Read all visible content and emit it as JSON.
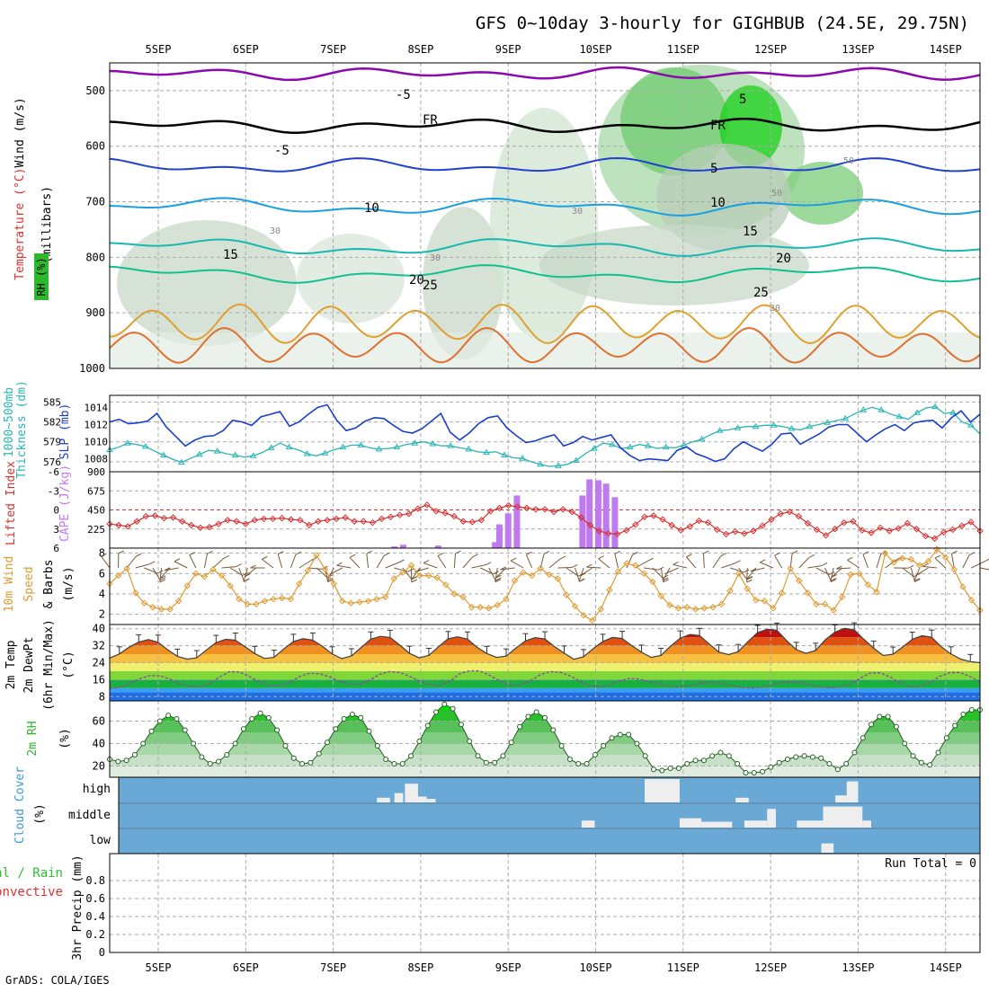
{
  "title": "GFS 0~10day 3-hourly for GIGHBUB (24.5E, 29.75N)",
  "footer": "GrADS: COLA/IGES",
  "dates": [
    "5SEP",
    "6SEP",
    "7SEP",
    "8SEP",
    "9SEP",
    "10SEP",
    "11SEP",
    "12SEP",
    "13SEP",
    "14SEP"
  ],
  "colors": {
    "rh_green": "#2db82d",
    "temp_purple": "#8a0ab0",
    "slp_blue": "#1a3fcc",
    "thick_cyan": "#2ab5b5",
    "li_red": "#d83030",
    "cape_violet": "#c07af0",
    "wind_orange": "#e09a30",
    "cloud_blue": "#6aa8d6",
    "precip_green": "#2fbf2f",
    "precip_red": "#e03030"
  },
  "chart_data": [
    {
      "type": "contour",
      "name": "pressure-cross-section",
      "ylabels": [
        "Wind (m/s)",
        "Temperature (°C)",
        "RH (%)",
        "(millibars)"
      ],
      "ytick_labels": [
        "500",
        "600",
        "700",
        "800",
        "900",
        "1000"
      ],
      "yticks": [
        500,
        600,
        700,
        800,
        900,
        1000
      ],
      "ylim": [
        1000,
        450
      ],
      "temperature_labels": [
        "-5",
        "FR",
        "-5",
        "10",
        "15",
        "20",
        "25",
        "5",
        "FR",
        "5",
        "10",
        "15",
        "20",
        "25"
      ],
      "rh_labels": [
        "30",
        "30",
        "30",
        "50",
        "50",
        "30"
      ]
    },
    {
      "type": "line",
      "name": "thickness-slp",
      "ylabels": [
        "1000~500mb",
        "Thickness (dm)",
        "SLP (mb)"
      ],
      "thickness_ticks": [
        "576",
        "579",
        "582",
        "585"
      ],
      "slp_ticks": [
        "1008",
        "1010",
        "1012",
        "1014"
      ],
      "thickness_range": [
        574.5,
        586
      ],
      "slp_range": [
        1006.5,
        1015.4
      ],
      "slp": [
        1012.3,
        1012.6,
        1012.1,
        1012.2,
        1012.4,
        1013.3,
        1011.7,
        1010.6,
        1009.5,
        1010.2,
        1010.6,
        1010.7,
        1011.3,
        1012.5,
        1012.3,
        1011.9,
        1012.9,
        1013.2,
        1013.5,
        1011.8,
        1012.3,
        1013.2,
        1014.0,
        1014.3,
        1012.5,
        1011.3,
        1011.6,
        1012.4,
        1012.8,
        1012.7,
        1011.9,
        1011.2,
        1011.0,
        1011.5,
        1012.4,
        1013.3,
        1011.1,
        1010.2,
        1011.0,
        1012.1,
        1012.8,
        1013.0,
        1011.6,
        1010.7,
        1009.9,
        1010.1,
        1010.5,
        1010.8,
        1009.5,
        1009.9,
        1010.6,
        1010.2,
        1010.5,
        1010.8,
        1009.3,
        1008.4,
        1007.8,
        1008.0,
        1007.9,
        1007.8,
        1009.0,
        1009.4,
        1008.6,
        1008.2,
        1007.7,
        1008.0,
        1009.2,
        1010.0,
        1009.4,
        1008.9,
        1009.7,
        1010.9,
        1011.0,
        1009.7,
        1010.3,
        1010.9,
        1011.7,
        1012.0,
        1012.0,
        1011.0,
        1010.0,
        1010.8,
        1011.5,
        1012.0,
        1011.3,
        1012.2,
        1012.4,
        1012.5,
        1011.6,
        1012.8,
        1013.6,
        1012.3,
        1013.2
      ],
      "thickness": [
        577.8,
        578.2,
        578.8,
        578.6,
        578.3,
        577.6,
        577.0,
        576.4,
        575.9,
        576.5,
        577.1,
        577.7,
        577.6,
        577.2,
        577.0,
        576.7,
        576.9,
        577.4,
        578.1,
        578.8,
        578.2,
        577.8,
        577.2,
        576.9,
        577.3,
        577.8,
        578.2,
        578.5,
        578.5,
        578.1,
        577.9,
        578.0,
        578.2,
        578.6,
        578.8,
        579.0,
        578.7,
        578.4,
        578.4,
        578.1,
        577.9,
        577.5,
        577.4,
        577.5,
        577.0,
        576.6,
        576.5,
        576.0,
        575.6,
        575.3,
        575.4,
        575.6,
        576.2,
        577.2,
        578.0,
        578.8,
        578.6,
        578.0,
        578.2,
        578.6,
        578.4,
        578.0,
        578.2,
        578.1,
        578.5,
        579.0,
        579.4,
        580.1,
        580.7,
        580.8,
        581.1,
        581.3,
        581.3,
        581.5,
        581.5,
        581.3,
        581.0,
        580.8,
        581.3,
        581.6,
        581.9,
        582.2,
        582.5,
        583.2,
        583.8,
        584.2,
        583.8,
        583.2,
        582.8,
        582.4,
        583.4,
        584.1,
        584.3,
        583.3,
        583.4,
        582.0,
        581.5,
        580.2
      ],
      "series": [
        {
          "name": "SLP (mb)"
        },
        {
          "name": "Thickness (dm)"
        }
      ]
    },
    {
      "type": "bar+line",
      "name": "cape-lifted-index",
      "ylabels": [
        "Lifted Index",
        "CAPE (J/kg)"
      ],
      "li_ticks": [
        "-6",
        "-3",
        "0",
        "3",
        "6"
      ],
      "cape_ticks": [
        "225",
        "450",
        "675",
        "900"
      ],
      "li_range": [
        6,
        -6
      ],
      "cape_range": [
        0,
        900
      ],
      "lifted_index": [
        2.2,
        2.4,
        2.6,
        1.8,
        1.0,
        0.9,
        1.3,
        1.2,
        1.8,
        2.4,
        2.8,
        2.7,
        2.2,
        1.6,
        1.8,
        2.2,
        1.6,
        1.4,
        1.4,
        1.3,
        1.5,
        1.6,
        2.4,
        1.8,
        1.6,
        1.4,
        1.2,
        1.8,
        1.8,
        2.0,
        1.4,
        1.1,
        0.8,
        0.6,
        -0.2,
        -0.8,
        0.2,
        0.5,
        1.0,
        1.8,
        1.9,
        1.6,
        0.2,
        -0.3,
        -0.7,
        -0.5,
        -0.3,
        -0.1,
        -0.1,
        0.3,
        -0.1,
        0.3,
        1.2,
        2.4,
        3.3,
        3.7,
        3.8,
        3.2,
        2.3,
        1.1,
        0.9,
        1.5,
        2.4,
        3.2,
        2.6,
        1.7,
        2.0,
        3.1,
        3.8,
        3.4,
        3.7,
        3.3,
        2.5,
        1.5,
        0.6,
        0.3,
        1.0,
        2.1,
        3.1,
        4.0,
        3.0,
        2.0,
        1.8,
        3.2,
        3.6,
        2.8,
        3.3,
        2.9,
        2.1,
        3.0,
        4.1,
        4.5,
        3.5,
        3.1,
        2.5,
        1.9,
        3.3
      ],
      "cape": [
        0,
        0,
        0,
        0,
        0,
        0,
        0,
        0,
        0,
        0,
        0,
        0,
        0,
        0,
        0,
        0,
        0,
        0,
        30,
        50,
        10,
        0,
        0,
        0,
        0,
        0,
        0,
        0,
        0,
        0,
        0,
        0,
        0,
        0,
        0,
        0,
        0,
        0,
        0,
        0,
        0,
        0,
        0,
        0,
        0,
        0,
        0,
        0,
        0,
        0,
        0,
        0,
        0,
        0,
        0,
        0,
        0,
        0,
        0,
        0,
        0,
        0,
        0,
        0,
        0,
        0,
        0,
        0,
        0,
        0,
        0,
        0,
        0,
        0,
        0,
        0,
        0,
        0,
        0,
        0,
        0,
        0,
        0,
        0,
        0,
        0,
        0,
        0,
        0,
        0,
        0,
        0,
        0,
        0,
        0,
        0,
        0,
        0,
        0,
        0
      ],
      "cape_bars": [
        {
          "x": 2.7,
          "v": 20
        },
        {
          "x": 2.8,
          "v": 40
        },
        {
          "x": 3.2,
          "v": 30
        },
        {
          "x": 3.85,
          "v": 70
        },
        {
          "x": 3.9,
          "v": 280
        },
        {
          "x": 4.0,
          "v": 410
        },
        {
          "x": 4.1,
          "v": 620
        },
        {
          "x": 4.85,
          "v": 620
        },
        {
          "x": 4.93,
          "v": 810
        },
        {
          "x": 5.03,
          "v": 800
        },
        {
          "x": 5.12,
          "v": 760
        },
        {
          "x": 5.22,
          "v": 600
        }
      ],
      "series": [
        {
          "name": "Lifted Index"
        },
        {
          "name": "CAPE (J/kg)"
        }
      ]
    },
    {
      "type": "line",
      "name": "10m-wind",
      "ylabels": [
        "10m Wind",
        "Speed",
        "& Barbs",
        "(m/s)"
      ],
      "yticks": [
        "2",
        "4",
        "6",
        "8"
      ],
      "ylim": [
        1,
        8.5
      ],
      "speed": [
        5.0,
        5.8,
        6.5,
        4.1,
        3.1,
        2.7,
        2.5,
        2.5,
        3.3,
        4.8,
        6.0,
        5.7,
        6.4,
        5.8,
        4.8,
        3.5,
        3.0,
        3.0,
        3.3,
        3.5,
        3.6,
        3.5,
        5.0,
        6.3,
        7.8,
        6.4,
        5.0,
        3.3,
        3.1,
        3.2,
        3.3,
        3.5,
        3.7,
        5.5,
        6.1,
        6.8,
        5.8,
        5.8,
        5.6,
        4.9,
        4.0,
        3.7,
        2.7,
        2.7,
        2.6,
        2.9,
        3.5,
        5.3,
        6.1,
        5.8,
        6.5,
        5.9,
        5.5,
        3.9,
        2.8,
        1.9,
        1.4,
        2.5,
        4.4,
        6.2,
        7.0,
        6.8,
        6.0,
        5.2,
        3.8,
        2.9,
        2.6,
        2.7,
        2.5,
        2.6,
        2.7,
        3.0,
        4.3,
        6.0,
        4.5,
        3.4,
        3.3,
        2.6,
        4.1,
        6.5,
        5.3,
        4.1,
        3.0,
        3.0,
        2.4,
        3.7,
        5.9,
        6.0,
        4.9,
        4.2,
        8.0,
        7.1,
        7.5,
        7.4,
        6.8,
        7.2,
        8.4,
        7.6,
        6.4,
        4.7,
        3.4,
        2.4
      ]
    },
    {
      "type": "area",
      "name": "2m-temp-dewpoint",
      "ylabels": [
        "2m Temp",
        "2m DewPt",
        "(6hr Min/Max)",
        "(°C)"
      ],
      "yticks": [
        "8",
        "16",
        "24",
        "32",
        "40"
      ],
      "ylim": [
        6,
        42
      ],
      "temp": [
        26.2,
        28.1,
        31.3,
        33.7,
        34.9,
        33.6,
        30.1,
        27.0,
        25.7,
        26.3,
        30.0,
        33.5,
        35.0,
        34.6,
        31.5,
        28.3,
        26.0,
        26.5,
        30.5,
        34.0,
        35.3,
        34.6,
        31.7,
        28.1,
        25.9,
        27.2,
        31.1,
        35.1,
        36.4,
        35.9,
        32.3,
        28.4,
        26.3,
        27.4,
        31.5,
        35.3,
        36.2,
        35.1,
        31.2,
        28.3,
        26.5,
        27.1,
        30.8,
        34.3,
        35.8,
        35.2,
        31.6,
        28.5,
        25.6,
        26.8,
        30.6,
        34.0,
        35.9,
        35.4,
        32.0,
        28.9,
        26.5,
        27.4,
        31.8,
        35.6,
        37.3,
        36.8,
        32.8,
        29.0,
        27.8,
        29.2,
        33.9,
        38.2,
        39.8,
        39.3,
        34.4,
        30.2,
        28.4,
        29.8,
        34.8,
        38.4,
        40.2,
        39.4,
        35.0,
        30.8,
        27.4,
        28.0,
        31.4,
        35.0,
        36.7,
        36.0,
        31.5,
        28.1,
        25.7,
        24.5,
        24.0
      ],
      "dewpoint": [
        11.8,
        12.4,
        14.1,
        16.5,
        17.9,
        17.8,
        16.3,
        14.1,
        12.8,
        12.6,
        14.2,
        17.3,
        19.8,
        19.6,
        17.4,
        14.8,
        13.2,
        13.0,
        14.7,
        17.5,
        19.0,
        18.8,
        17.3,
        15.2,
        13.9,
        13.8,
        15.8,
        18.6,
        19.8,
        19.4,
        17.6,
        15.2,
        13.5,
        13.4,
        15.3,
        18.8,
        20.2,
        20.1,
        18.0,
        15.4,
        13.5,
        13.5,
        15.3,
        18.2,
        19.8,
        19.5,
        17.8,
        15.3,
        13.1,
        12.6,
        13.6,
        15.5,
        16.6,
        16.2,
        15.0,
        13.8,
        12.8,
        12.7,
        13.2,
        14.2,
        14.6,
        14.3,
        13.4,
        12.5,
        12.1,
        12.4,
        13.3,
        14.4,
        14.8,
        14.5,
        13.5,
        12.6,
        12.2,
        12.5,
        13.8,
        16.6,
        19.1,
        19.2,
        17.3,
        14.4,
        12.6,
        12.9,
        14.6,
        17.6,
        19.3,
        19.4,
        17.5,
        14.9
      ]
    },
    {
      "type": "area",
      "name": "2m-rh",
      "ylabels": [
        "2m RH",
        "(%)"
      ],
      "yticks": [
        "20",
        "40",
        "60"
      ],
      "ylim": [
        10,
        78
      ],
      "rh": [
        26,
        24,
        25,
        30,
        40,
        51,
        60,
        65,
        62,
        52,
        40,
        28,
        22,
        24,
        30,
        40,
        53,
        62,
        67,
        63,
        52,
        38,
        27,
        22,
        23,
        31,
        41,
        53,
        62,
        66,
        63,
        51,
        38,
        26,
        22,
        22,
        29,
        42,
        56,
        68,
        75,
        71,
        57,
        42,
        29,
        23,
        23,
        29,
        41,
        55,
        64,
        68,
        63,
        52,
        38,
        26,
        22,
        22,
        30,
        38,
        45,
        48,
        48,
        40,
        29,
        17,
        16,
        18,
        18,
        22,
        25,
        25,
        29,
        32,
        29,
        22,
        14,
        14,
        15,
        19,
        23,
        26,
        28,
        29,
        28,
        27,
        22,
        17,
        22,
        32,
        45,
        57,
        64,
        64,
        55,
        40,
        29,
        23,
        21,
        32,
        45,
        56,
        66,
        70,
        70
      ],
      "series": [
        {
          "name": "2m RH (%)"
        }
      ]
    },
    {
      "type": "heatmap",
      "name": "cloud-cover",
      "ylabels": [
        "Cloud Cover",
        "(%)"
      ],
      "levels": [
        "high",
        "middle",
        "low"
      ],
      "high": [
        {
          "x": 2.5,
          "w": 0.15,
          "v": 20
        },
        {
          "x": 2.7,
          "w": 0.1,
          "v": 40
        },
        {
          "x": 2.82,
          "w": 0.15,
          "v": 80
        },
        {
          "x": 2.97,
          "w": 0.1,
          "v": 25
        },
        {
          "x": 3.07,
          "w": 0.1,
          "v": 15
        },
        {
          "x": 5.56,
          "w": 0.4,
          "v": 100
        },
        {
          "x": 6.6,
          "w": 0.15,
          "v": 20
        },
        {
          "x": 7.87,
          "w": 0.13,
          "v": 90
        },
        {
          "x": 7.74,
          "w": 0.13,
          "v": 30
        }
      ],
      "middle": [
        {
          "x": 4.84,
          "w": 0.15,
          "v": 30
        },
        {
          "x": 5.96,
          "w": 0.25,
          "v": 40
        },
        {
          "x": 6.21,
          "w": 0.35,
          "v": 25
        },
        {
          "x": 6.7,
          "w": 0.2,
          "v": 30
        },
        {
          "x": 6.96,
          "w": 0.1,
          "v": 80
        },
        {
          "x": 6.86,
          "w": 0.1,
          "v": 30
        },
        {
          "x": 7.3,
          "w": 0.3,
          "v": 30
        },
        {
          "x": 7.6,
          "w": 0.45,
          "v": 90
        },
        {
          "x": 8.05,
          "w": 0.1,
          "v": 30
        }
      ],
      "low": [
        {
          "x": 7.58,
          "w": 0.14,
          "v": 40
        }
      ]
    },
    {
      "type": "bar",
      "name": "3hr-precip",
      "ylabels": [
        "Total / Rain",
        "Convective",
        "3hr Precip (mm)"
      ],
      "yticks": [
        "0",
        "0.2",
        "0.4",
        "0.6",
        "0.8"
      ],
      "ylim": [
        0,
        1.0
      ],
      "run_total": "Run Total = 0",
      "values": [],
      "series": [
        {
          "name": "Total / Rain"
        },
        {
          "name": "Convective"
        }
      ]
    }
  ]
}
